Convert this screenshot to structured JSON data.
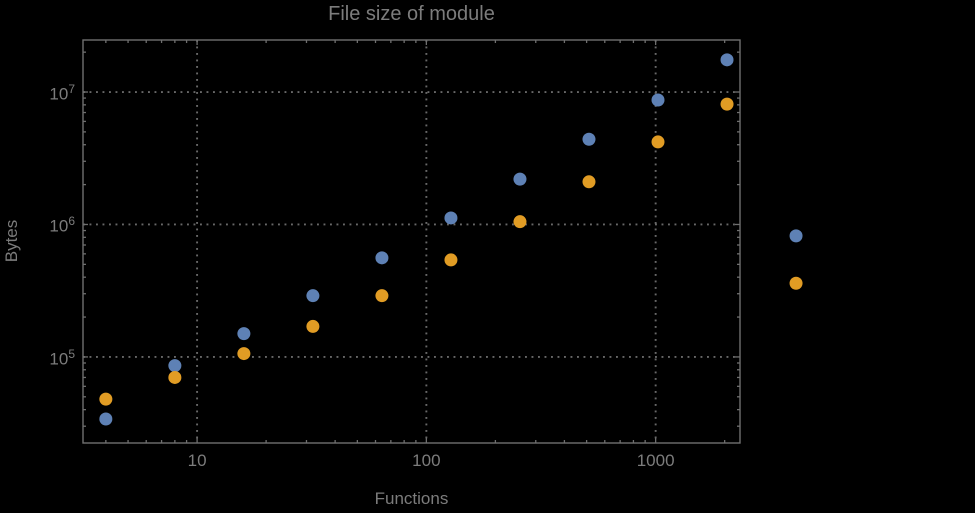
{
  "chart_data": {
    "type": "scatter",
    "title": "File size of module",
    "xlabel": "Functions",
    "ylabel": "Bytes",
    "x_scale": "log",
    "y_scale": "log",
    "xlim": [
      3.18,
      2333
    ],
    "ylim": [
      22400,
      24700000
    ],
    "grid": "dotted-at-major-ticks",
    "legend": "none",
    "marker_radius": 6.5,
    "x_ticks": [
      {
        "v": 10,
        "label": "10"
      },
      {
        "v": 100,
        "label": "100"
      },
      {
        "v": 1000,
        "label": "1000"
      }
    ],
    "y_ticks": [
      {
        "v": 100000,
        "base": "10",
        "exp": "5"
      },
      {
        "v": 1000000,
        "base": "10",
        "exp": "6"
      },
      {
        "v": 10000000,
        "base": "10",
        "exp": "7"
      }
    ],
    "series": [
      {
        "name": "series-blue",
        "color": "#5E81B5",
        "points": [
          [
            4,
            34000
          ],
          [
            8,
            86000
          ],
          [
            16,
            150000
          ],
          [
            32,
            290000
          ],
          [
            64,
            560000
          ],
          [
            128,
            1120000
          ],
          [
            256,
            2200000
          ],
          [
            512,
            4400000
          ],
          [
            1024,
            8700000
          ],
          [
            2048,
            17500000
          ],
          [
            4096,
            820000
          ]
        ]
      },
      {
        "name": "series-orange",
        "color": "#E19C24",
        "points": [
          [
            4,
            48000
          ],
          [
            8,
            70000
          ],
          [
            16,
            106000
          ],
          [
            32,
            170000
          ],
          [
            64,
            290000
          ],
          [
            128,
            540000
          ],
          [
            256,
            1050000
          ],
          [
            512,
            2100000
          ],
          [
            1024,
            4200000
          ],
          [
            2048,
            8100000
          ],
          [
            4096,
            360000
          ]
        ]
      }
    ],
    "colors": {
      "background": "#000000",
      "frame": "#6F6F6F",
      "grid": "#686868",
      "text": "#7C7C7C"
    }
  }
}
